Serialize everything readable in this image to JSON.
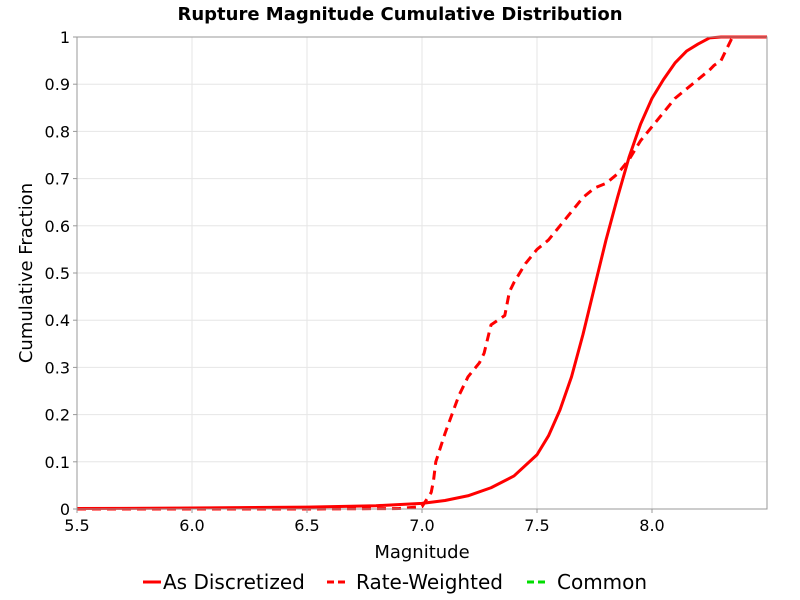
{
  "chart_data": {
    "type": "line",
    "title": "Rupture Magnitude Cumulative Distribution",
    "xlabel": "Magnitude",
    "ylabel": "Cumulative Fraction",
    "xlim": [
      5.5,
      8.5
    ],
    "ylim": [
      0,
      1
    ],
    "x_ticks": [
      5.5,
      6.0,
      6.5,
      7.0,
      7.5,
      8.0
    ],
    "x_tick_labels": [
      "5.5",
      "6.0",
      "6.5",
      "7.0",
      "7.5",
      "8.0"
    ],
    "y_ticks": [
      0,
      0.1,
      0.2,
      0.3,
      0.4,
      0.5,
      0.6,
      0.7,
      0.8,
      0.9,
      1
    ],
    "y_tick_labels": [
      "0",
      "0.1",
      "0.2",
      "0.3",
      "0.4",
      "0.5",
      "0.6",
      "0.7",
      "0.8",
      "0.9",
      "1"
    ],
    "grid": true,
    "legend_position": "bottom",
    "series": [
      {
        "name": "As Discretized",
        "color": "#ff0000",
        "dash": "solid",
        "x": [
          5.5,
          6.0,
          6.5,
          6.8,
          7.0,
          7.1,
          7.2,
          7.3,
          7.4,
          7.5,
          7.55,
          7.6,
          7.65,
          7.7,
          7.75,
          7.8,
          7.85,
          7.9,
          7.95,
          8.0,
          8.05,
          8.1,
          8.15,
          8.2,
          8.25,
          8.3,
          8.5
        ],
        "y": [
          0.001,
          0.002,
          0.004,
          0.007,
          0.012,
          0.018,
          0.028,
          0.045,
          0.07,
          0.115,
          0.155,
          0.21,
          0.28,
          0.37,
          0.47,
          0.57,
          0.66,
          0.745,
          0.815,
          0.87,
          0.91,
          0.945,
          0.97,
          0.985,
          0.998,
          1.0,
          1.0
        ]
      },
      {
        "name": "Rate-Weighted",
        "color": "#ff0000",
        "dash": "dashed",
        "x": [
          5.5,
          6.5,
          6.9,
          7.0,
          7.02,
          7.04,
          7.05,
          7.06,
          7.08,
          7.1,
          7.13,
          7.16,
          7.2,
          7.25,
          7.27,
          7.3,
          7.33,
          7.36,
          7.38,
          7.4,
          7.45,
          7.5,
          7.55,
          7.6,
          7.65,
          7.7,
          7.75,
          7.8,
          7.85,
          7.9,
          7.95,
          8.0,
          8.05,
          8.1,
          8.15,
          8.2,
          8.25,
          8.27,
          8.3,
          8.32,
          8.35,
          8.5
        ],
        "y": [
          0,
          0,
          0.001,
          0.005,
          0.02,
          0.035,
          0.06,
          0.1,
          0.13,
          0.16,
          0.2,
          0.24,
          0.28,
          0.31,
          0.33,
          0.39,
          0.4,
          0.41,
          0.46,
          0.48,
          0.52,
          0.55,
          0.57,
          0.6,
          0.63,
          0.66,
          0.68,
          0.69,
          0.71,
          0.74,
          0.78,
          0.81,
          0.84,
          0.87,
          0.89,
          0.91,
          0.93,
          0.94,
          0.95,
          0.97,
          1.0,
          1.0
        ]
      },
      {
        "name": "Common",
        "color": "#00dd00",
        "dash": "dashed",
        "x": [],
        "y": []
      }
    ]
  }
}
